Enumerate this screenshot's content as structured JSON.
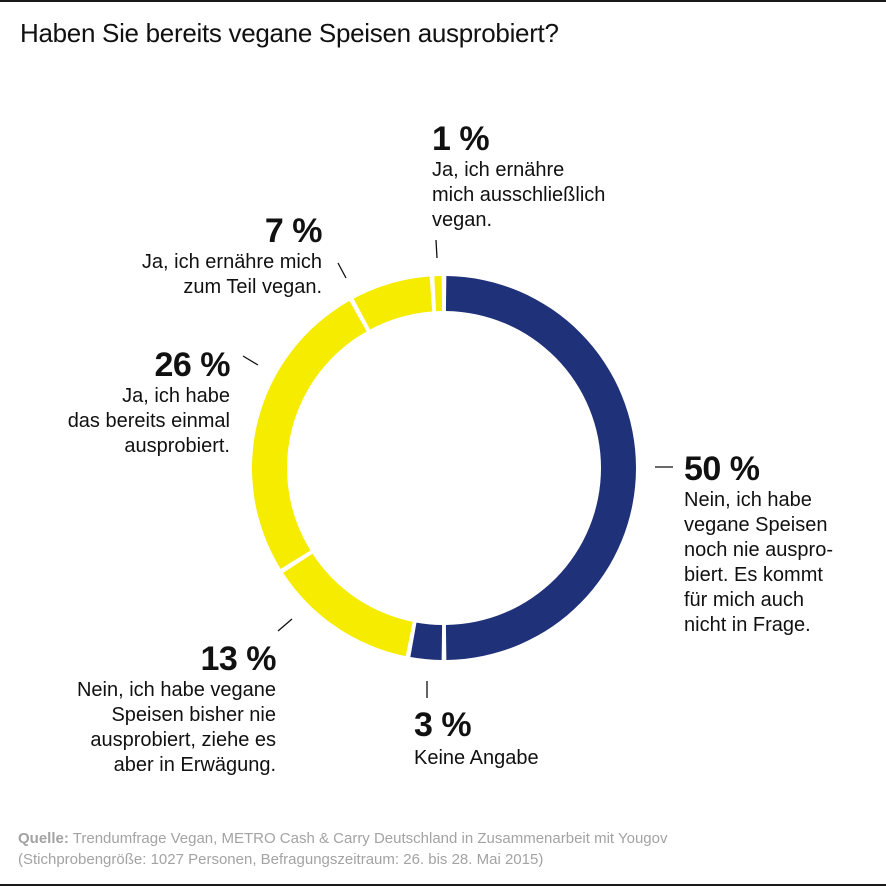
{
  "title": "Haben Sie bereits vegane Speisen ausprobiert?",
  "colors": {
    "navy": "#1f3179",
    "yellow": "#f5ec00"
  },
  "chart_data": {
    "type": "pie",
    "variant": "donut",
    "title": "Haben Sie bereits vegane Speisen ausprobiert?",
    "slices": [
      {
        "label": "Nein, ich habe vegane Speisen noch nie ausprobiert. Es kommt für mich auch nicht in Frage.",
        "value": 50,
        "display": "50 %",
        "color": "#1f3179"
      },
      {
        "label": "Keine Angabe",
        "value": 3,
        "display": "3 %",
        "color": "#1f3179"
      },
      {
        "label": "Nein, ich habe vegane Speisen bisher nie ausprobiert, ziehe es aber in Erwägung.",
        "value": 13,
        "display": "13 %",
        "color": "#f5ec00"
      },
      {
        "label": "Ja, ich habe das bereits einmal ausprobiert.",
        "value": 26,
        "display": "26 %",
        "color": "#f5ec00"
      },
      {
        "label": "Ja, ich ernähre mich zum Teil vegan.",
        "value": 7,
        "display": "7 %",
        "color": "#f5ec00"
      },
      {
        "label": "Ja, ich ernähre mich ausschließlich vegan.",
        "value": 1,
        "display": "1 %",
        "color": "#f5ec00"
      }
    ]
  },
  "labels": {
    "s50": {
      "pct": "50 %",
      "text": "Nein, ich habe\nvegane Speisen\nnoch nie auspro-\nbiert. Es kommt\nfür mich auch\nnicht in Frage."
    },
    "s3": {
      "pct": "3 %",
      "text": "Keine Angabe"
    },
    "s13": {
      "pct": "13 %",
      "text": "Nein, ich habe vegane\nSpeisen bisher nie\nausprobiert, ziehe es\naber in Erwägung."
    },
    "s26": {
      "pct": "26 %",
      "text": "Ja, ich habe\ndas bereits einmal\nausprobiert."
    },
    "s7": {
      "pct": "7 %",
      "text": "Ja, ich ernähre mich\nzum Teil vegan."
    },
    "s1": {
      "pct": "1 %",
      "text": "Ja, ich ernähre\nmich ausschließlich\nvegan."
    }
  },
  "source": {
    "label": "Quelle:",
    "text": " Trendumfrage Vegan, METRO Cash & Carry Deutschland in Zusammenarbeit mit Yougov",
    "line2": "(Stichprobengröße: 1027 Personen, Befragungszeitraum: 26. bis 28. Mai 2015)"
  }
}
